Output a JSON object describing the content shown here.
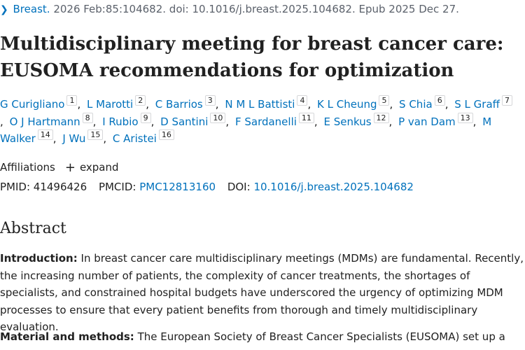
{
  "citation": {
    "chevron_icon": "chevron-right-icon",
    "journal": "Breast.",
    "details": "2026 Feb:85:104682. doi: 10.1016/j.breast.2025.104682. Epub 2025 Dec 27."
  },
  "title": {
    "line1": "Multidisciplinary meeting for breast cancer care:",
    "line2": "EUSOMA recommendations for optimization"
  },
  "authors": [
    {
      "name": "G Curigliano",
      "num": "1"
    },
    {
      "name": "L Marotti",
      "num": "2"
    },
    {
      "name": "C Barrios",
      "num": "3"
    },
    {
      "name": "N M L Battisti",
      "num": "4"
    },
    {
      "name": "K L Cheung",
      "num": "5"
    },
    {
      "name": "S Chia",
      "num": "6"
    },
    {
      "name": "S L Graff",
      "num": "7"
    },
    {
      "name": "O J Hartmann",
      "num": "8"
    },
    {
      "name": "I Rubio",
      "num": "9"
    },
    {
      "name": "D Santini",
      "num": "10"
    },
    {
      "name": "F Sardanelli",
      "num": "11"
    },
    {
      "name": "E Senkus",
      "num": "12"
    },
    {
      "name": "P van Dam",
      "num": "13"
    },
    {
      "name": "M Walker",
      "num": "14"
    },
    {
      "name": "J Wu",
      "num": "15"
    },
    {
      "name": "C Aristei",
      "num": "16"
    }
  ],
  "affiliations": {
    "label": "Affiliations",
    "expand_icon": "plus-icon",
    "expand_label": "expand"
  },
  "identifiers": {
    "pmid_label": "PMID:",
    "pmid": "41496426",
    "pmcid_label": "PMCID:",
    "pmcid": "PMC12813160",
    "doi_label": "DOI:",
    "doi": "10.1016/j.breast.2025.104682"
  },
  "abstract": {
    "heading": "Abstract",
    "intro_label": "Introduction:",
    "intro_text": "In breast cancer care multidisciplinary meetings (MDMs) are fundamental. Recently, the increasing number of patients, the complexity of cancer treatments, the shortages of specialists, and constrained hospital budgets have underscored the urgency of optimizing MDM processes to ensure that every patient benefits from thorough and timely multidisciplinary evaluation.",
    "methods_label": "Material and methods:",
    "methods_text": "The European Society of Breast Cancer Specialists (EUSOMA) set up a"
  }
}
